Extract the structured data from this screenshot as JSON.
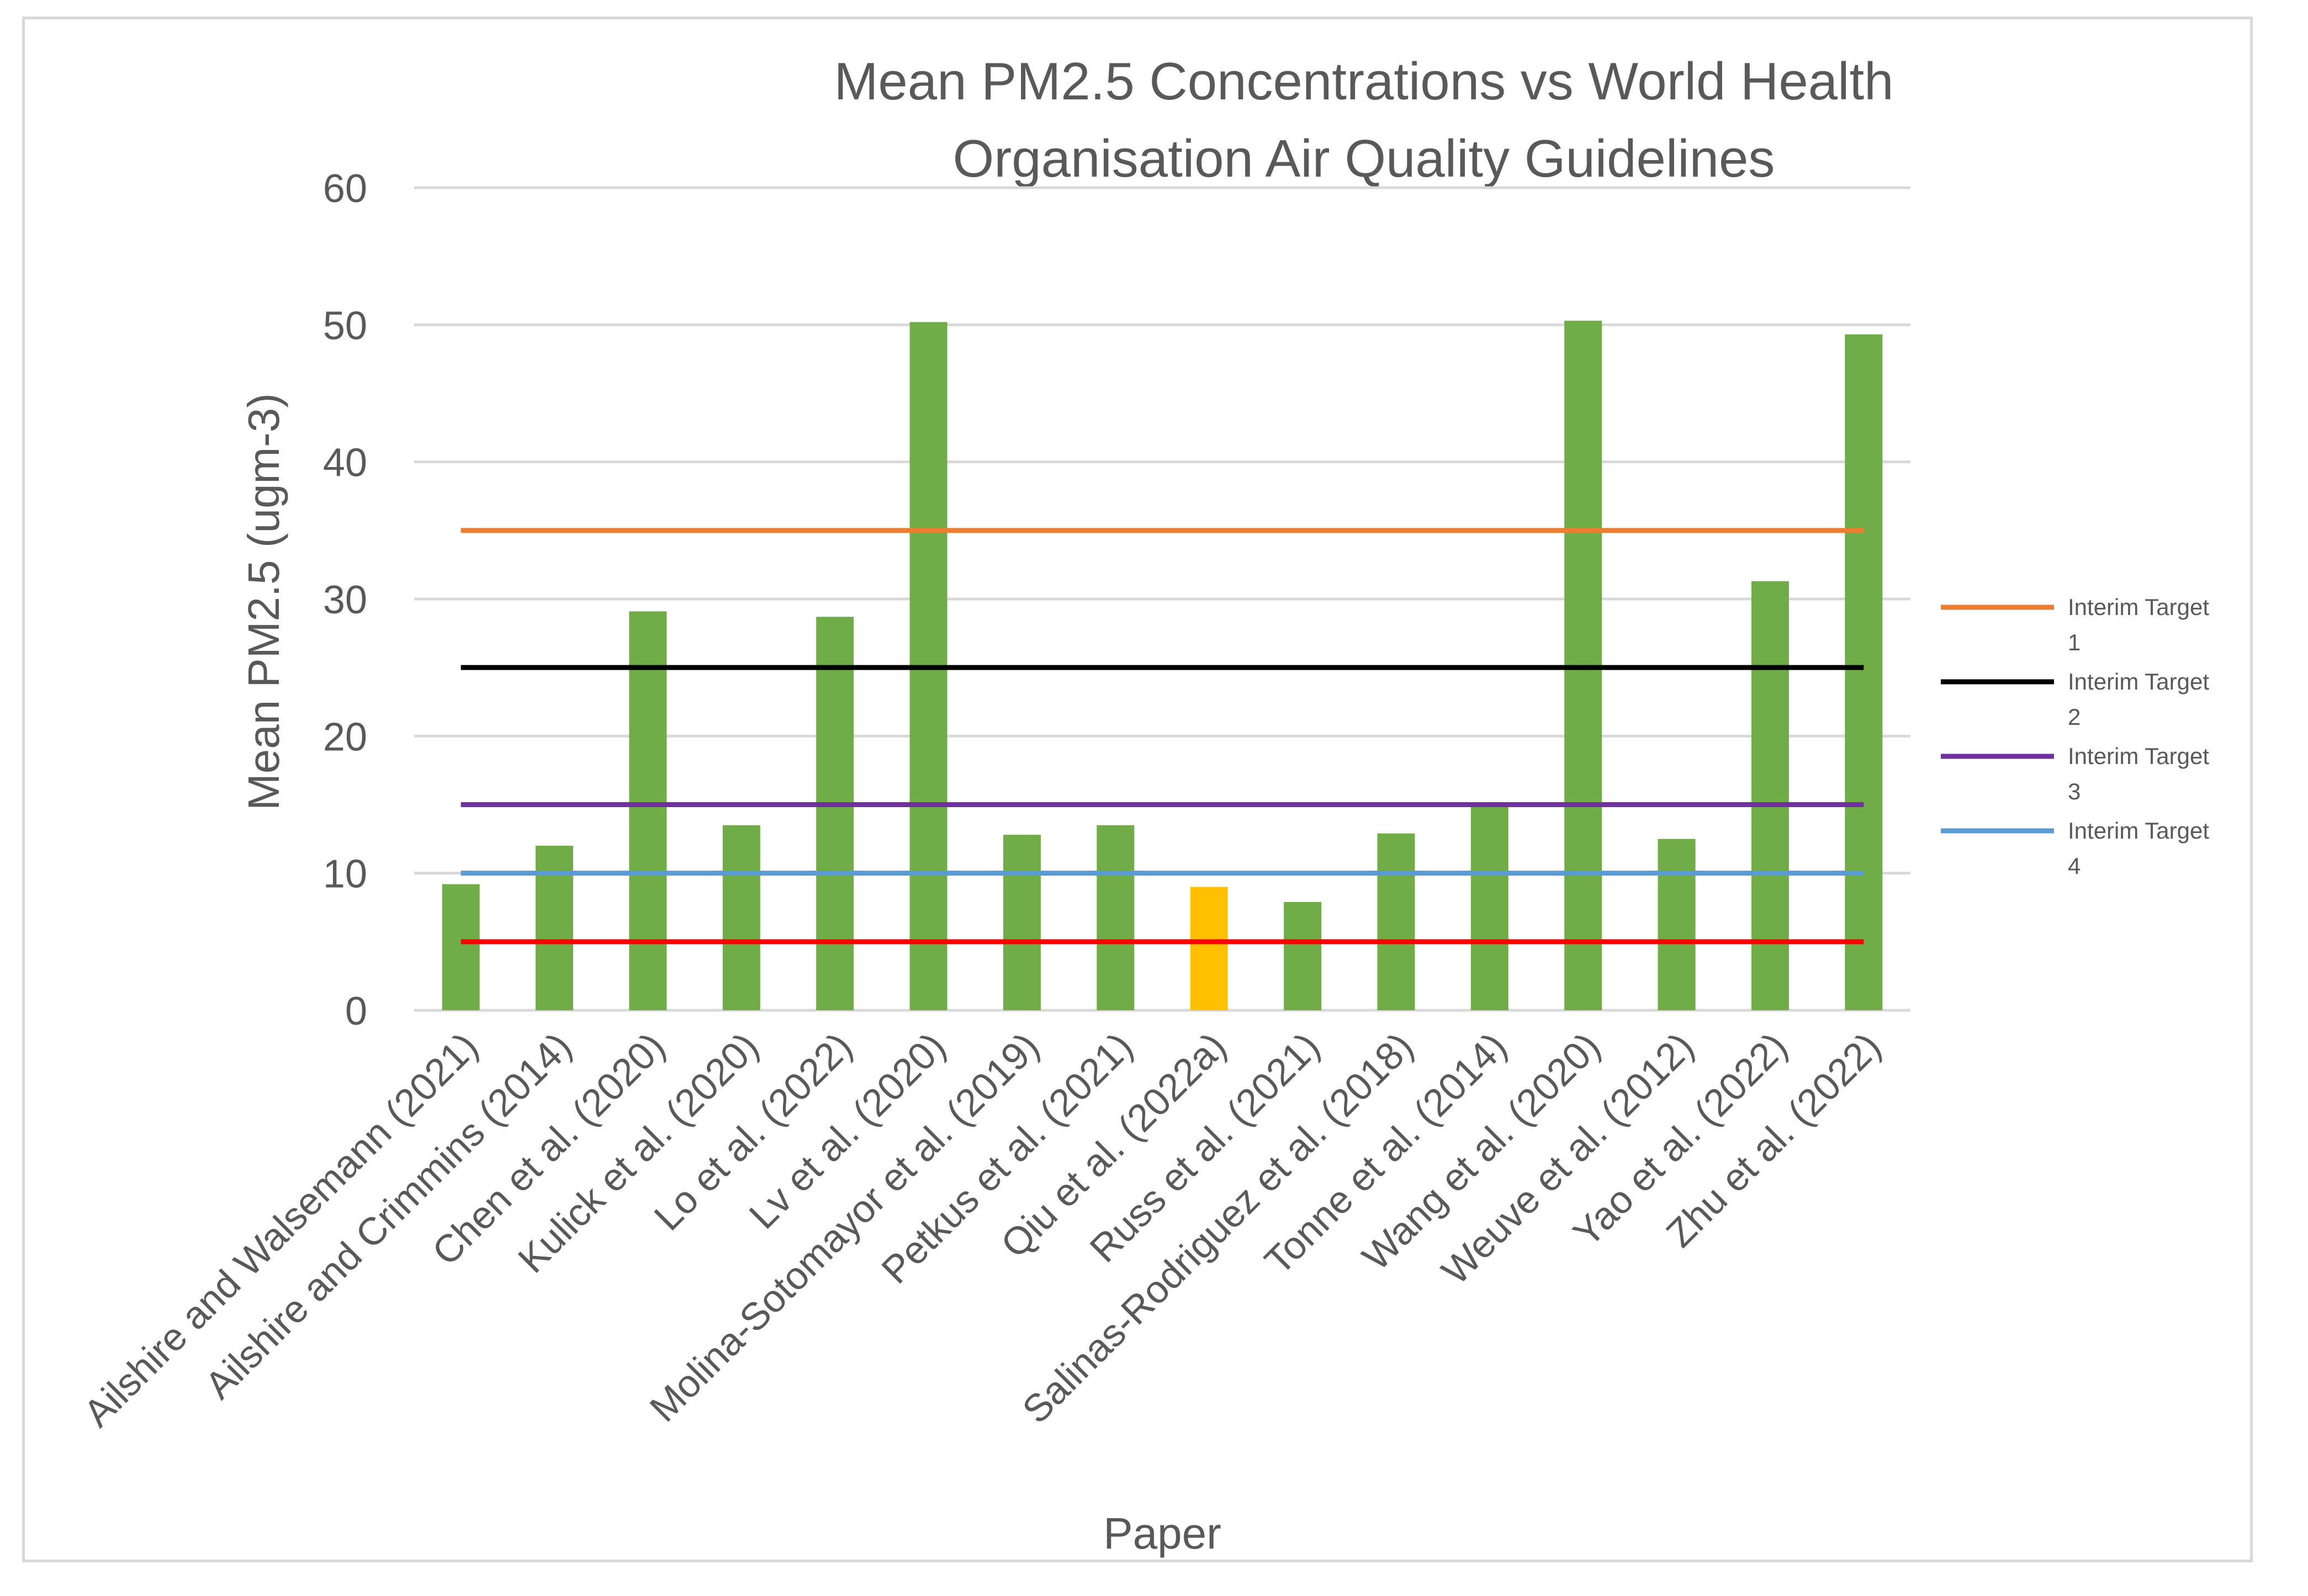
{
  "chart_data": {
    "type": "bar",
    "title_lines": [
      "Mean PM2.5 Concentrations vs World Health",
      "Organisation Air Quality Guidelines"
    ],
    "xlabel": "Paper",
    "ylabel": "Mean PM2.5 (ugm-3)",
    "ylim": [
      0,
      60
    ],
    "yticks": [
      0,
      10,
      20,
      30,
      40,
      50,
      60
    ],
    "grid": true,
    "categories": [
      "Ailshire and Walsemann (2021)",
      "Ailshire and Crimmins (2014)",
      "Chen et al. (2020)",
      "Kulick et al. (2020)",
      "Lo et al. (2022)",
      "Lv et al. (2020)",
      "Molina-Sotomayor et al. (2019)",
      "Petkus et al. (2021)",
      "Qiu et al. (2022a)",
      "Russ et al. (2021)",
      "Salinas-Rodriguez et al. (2018)",
      "Tonne et al. (2014)",
      "Wang et al. (2020)",
      "Weuve et al. (2012)",
      "Yao et al. (2022)",
      "Zhu et al. (2022)"
    ],
    "values": [
      9.2,
      12.0,
      29.1,
      13.5,
      28.7,
      50.2,
      12.8,
      13.5,
      9.0,
      7.9,
      12.9,
      15.0,
      50.3,
      12.5,
      31.3,
      49.3
    ],
    "bar_colors": [
      "#70ad47",
      "#70ad47",
      "#70ad47",
      "#70ad47",
      "#70ad47",
      "#70ad47",
      "#70ad47",
      "#70ad47",
      "#ffc000",
      "#70ad47",
      "#70ad47",
      "#70ad47",
      "#70ad47",
      "#70ad47",
      "#70ad47",
      "#70ad47"
    ],
    "reference_lines": [
      {
        "name": "Interim Target 1",
        "value": 35,
        "color": "#ed7d31",
        "in_legend": true
      },
      {
        "name": "Interim Target 2",
        "value": 25,
        "color": "#000000",
        "in_legend": true
      },
      {
        "name": "Interim Target 3",
        "value": 15,
        "color": "#7030a0",
        "in_legend": true
      },
      {
        "name": "Interim Target 4",
        "value": 10,
        "color": "#5b9bd5",
        "in_legend": true
      },
      {
        "name": "",
        "value": 5,
        "color": "#ff0000",
        "in_legend": false
      }
    ],
    "legend": {
      "position": "right",
      "items": [
        {
          "line1": "Interim Target",
          "line2": "1",
          "color": "#ed7d31"
        },
        {
          "line1": "Interim Target",
          "line2": "2",
          "color": "#000000"
        },
        {
          "line1": "Interim Target",
          "line2": "3",
          "color": "#7030a0"
        },
        {
          "line1": "Interim Target",
          "line2": "4",
          "color": "#5b9bd5"
        }
      ]
    }
  }
}
